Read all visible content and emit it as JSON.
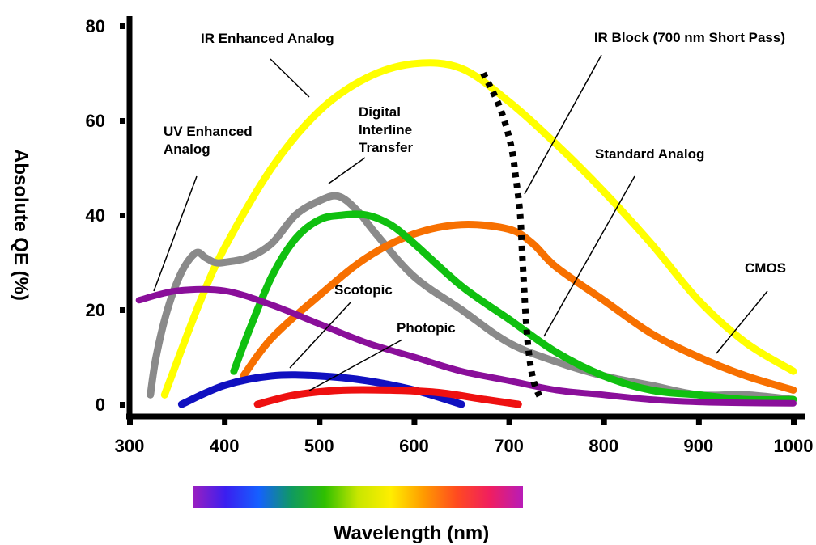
{
  "chart_data": {
    "type": "line",
    "title": "",
    "xlabel": "Wavelength (nm)",
    "ylabel": "Absolute QE  (%)",
    "xlim": [
      300,
      1000
    ],
    "ylim": [
      0,
      80
    ],
    "grid": false,
    "x_ticks": [
      "300",
      "400",
      "500",
      "600",
      "700",
      "800",
      "900",
      "1000"
    ],
    "y_ticks": [
      "0",
      "20",
      "40",
      "60",
      "80"
    ],
    "spectrum_bar": {
      "range_nm": [
        380,
        720
      ],
      "colors": [
        "#9b1fc0",
        "#3a1ff0",
        "#1560ff",
        "#0f9a60",
        "#2fc000",
        "#c8e600",
        "#ffee00",
        "#ff9a00",
        "#ff4a20",
        "#f01e60",
        "#b81cb8"
      ]
    },
    "series": [
      {
        "name": "IR Enhanced Analog",
        "color": "#ffff00",
        "width": 9,
        "x": [
          337,
          350,
          375,
          400,
          450,
          500,
          550,
          600,
          650,
          700,
          750,
          800,
          850,
          900,
          950,
          1000
        ],
        "y": [
          2,
          9,
          22,
          33,
          50,
          62,
          69,
          72,
          71,
          64,
          55,
          45,
          34,
          22,
          13,
          7
        ]
      },
      {
        "name": "Digital Interline Transfer",
        "color": "#8a8a8a",
        "width": 9,
        "x": [
          322,
          328,
          340,
          355,
          370,
          380,
          390,
          400,
          425,
          450,
          475,
          500,
          520,
          540,
          560,
          600,
          650,
          700,
          750,
          800,
          850,
          900,
          950,
          1000
        ],
        "y": [
          2,
          10,
          20,
          28,
          32,
          31,
          30,
          30,
          31,
          34,
          40,
          43,
          44,
          41,
          36,
          27,
          20,
          13,
          9,
          6,
          4,
          2,
          2,
          1
        ]
      },
      {
        "name": "Standard Analog",
        "color": "#f77000",
        "width": 9,
        "x": [
          420,
          450,
          500,
          550,
          600,
          650,
          700,
          725,
          750,
          800,
          850,
          900,
          950,
          1000
        ],
        "y": [
          6,
          14,
          23,
          31,
          36,
          38,
          37,
          34,
          29,
          22,
          15,
          10,
          6,
          3
        ]
      },
      {
        "name": "Green",
        "color": "#10c010",
        "width": 9,
        "x": [
          410,
          425,
          450,
          475,
          500,
          525,
          550,
          575,
          600,
          650,
          700,
          750,
          800,
          850,
          900,
          950,
          1000
        ],
        "y": [
          7,
          15,
          27,
          35,
          39,
          40,
          40,
          38,
          34,
          25,
          18,
          11,
          6,
          3,
          2,
          1,
          1
        ]
      },
      {
        "name": "UV Enhanced Analog",
        "color": "#8a0f9a",
        "width": 8,
        "x": [
          310,
          350,
          400,
          450,
          500,
          550,
          600,
          650,
          700,
          750,
          800,
          850,
          900,
          950,
          1000
        ],
        "y": [
          22,
          24,
          24,
          21,
          17,
          13,
          10,
          7,
          5,
          3,
          2,
          1,
          0.5,
          0.3,
          0.2
        ]
      },
      {
        "name": "Scotopic",
        "color": "#1010c0",
        "width": 9,
        "x": [
          355,
          400,
          450,
          500,
          550,
          600,
          650
        ],
        "y": [
          0,
          4,
          6,
          6,
          5,
          3,
          0
        ]
      },
      {
        "name": "Photopic",
        "color": "#ee1010",
        "width": 9,
        "x": [
          435,
          475,
          525,
          575,
          625,
          675,
          710
        ],
        "y": [
          0,
          2,
          3,
          3,
          2.5,
          1,
          0
        ]
      },
      {
        "name": "IR Block (700 nm Short Pass)",
        "color": "#000000",
        "width": 8,
        "dashed": true,
        "x": [
          673,
          690,
          702,
          708,
          712,
          714,
          716,
          718,
          721,
          726,
          734
        ],
        "y": [
          70,
          63,
          55,
          47,
          40,
          32,
          25,
          18,
          11,
          5,
          1
        ]
      }
    ],
    "annotations": [
      {
        "lines": [
          "IR Enhanced Analog"
        ]
      },
      {
        "lines": [
          "IR Block (700 nm Short Pass)"
        ]
      },
      {
        "lines": [
          "UV Enhanced",
          "Analog"
        ]
      },
      {
        "lines": [
          "Digital",
          "Interline",
          "Transfer"
        ]
      },
      {
        "lines": [
          "Standard Analog"
        ]
      },
      {
        "lines": [
          "CMOS"
        ]
      },
      {
        "lines": [
          "Scotopic"
        ]
      },
      {
        "lines": [
          "Photopic"
        ]
      }
    ]
  }
}
